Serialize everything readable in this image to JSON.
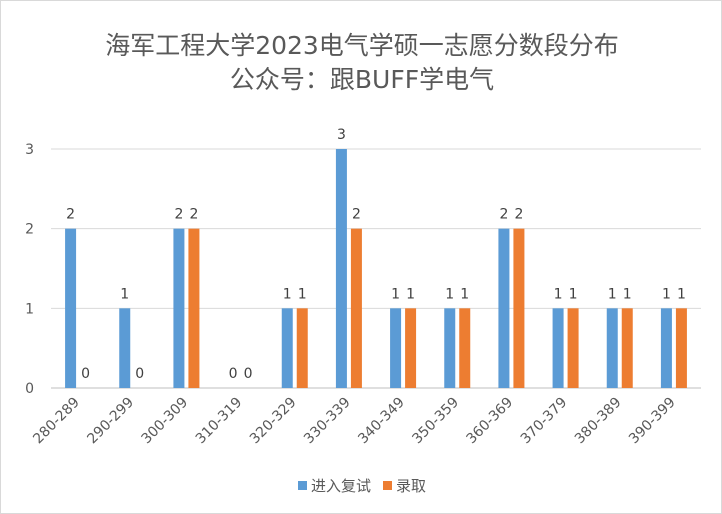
{
  "chart_data": {
    "type": "bar",
    "title": "海军工程大学2023电气学硕一志愿分数段分布",
    "subtitle": "公众号：跟BUFF学电气",
    "categories": [
      "280-289",
      "290-299",
      "300-309",
      "310-319",
      "320-329",
      "330-339",
      "340-349",
      "350-359",
      "360-369",
      "370-379",
      "380-389",
      "390-399"
    ],
    "series": [
      {
        "name": "进入复试",
        "values": [
          2,
          1,
          2,
          0,
          1,
          3,
          1,
          1,
          2,
          1,
          1,
          1
        ],
        "color": "#5b9bd5"
      },
      {
        "name": "录取",
        "values": [
          0,
          0,
          2,
          0,
          1,
          2,
          1,
          1,
          2,
          1,
          1,
          1
        ],
        "color": "#ed7d31"
      }
    ],
    "ylim": [
      0,
      3
    ],
    "yticks": [
      0,
      1,
      2,
      3
    ],
    "grid": true,
    "legend_position": "bottom"
  }
}
